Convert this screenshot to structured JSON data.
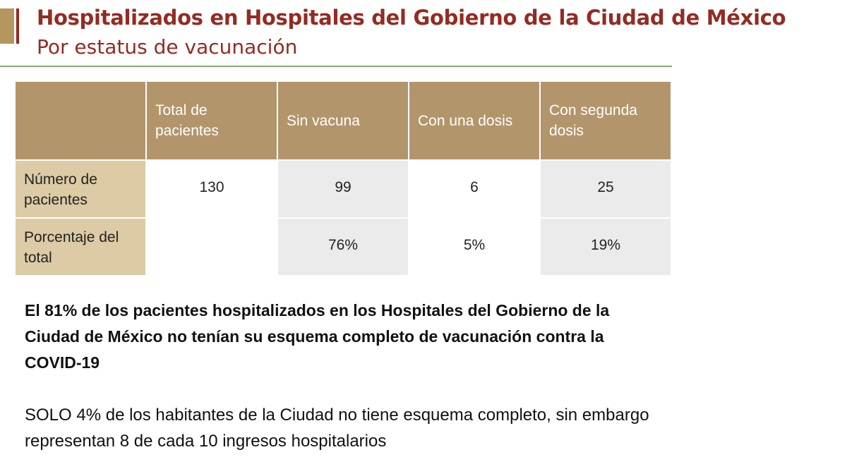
{
  "header": {
    "title": "Hospitalizados en Hospitales del Gobierno de la Ciudad de México",
    "subtitle": "Por estatus de vacunación"
  },
  "table": {
    "columns": [
      null,
      "Total de pacientes",
      "Sin vacuna",
      "Con una dosis",
      "Con segunda dosis"
    ],
    "rows": [
      [
        "Número de pacientes",
        "130",
        "99",
        "6",
        "25"
      ],
      [
        "Porcentaje del total",
        null,
        "76%",
        "5%",
        "19%"
      ]
    ]
  },
  "paragraphs": [
    "El 81% de los pacientes hospitalizados en los Hospitales del Gobierno de la Ciudad de México no tenían su esquema completo de vacunación contra la COVID-19",
    "SOLO 4% de los habitantes de la Ciudad no tiene esquema completo, sin embargo representan 8 de cada 10 ingresos hospitalarios"
  ]
}
